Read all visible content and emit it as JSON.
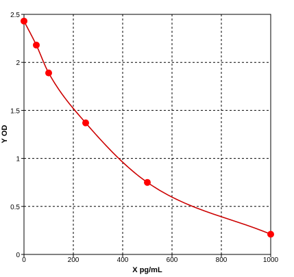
{
  "chart_data": {
    "type": "scatter",
    "title": "",
    "xlabel": "X pg/mL",
    "ylabel": "Y OD",
    "xlim": [
      0,
      1000
    ],
    "ylim": [
      0,
      2.5
    ],
    "x_ticks": [
      0,
      200,
      400,
      600,
      800,
      1000
    ],
    "y_ticks": [
      0,
      0.5,
      1,
      1.5,
      2,
      2.5
    ],
    "x_tick_labels": [
      "0",
      "200",
      "400",
      "600",
      "800",
      "1000"
    ],
    "y_tick_labels": [
      "0",
      "0.5",
      "1",
      "1.5",
      "2",
      "2.5"
    ],
    "grid": true,
    "grid_style": "dashed",
    "legend": "none",
    "series": [
      {
        "x": [
          0,
          50,
          100,
          250,
          500,
          1000
        ],
        "y": [
          2.43,
          2.18,
          1.89,
          1.37,
          0.75,
          0.21
        ],
        "fitted_curve": true
      }
    ],
    "colors": {
      "points": "#ff0000",
      "curve": "#cc0000",
      "grid": "#000000",
      "axis": "#000000"
    }
  }
}
